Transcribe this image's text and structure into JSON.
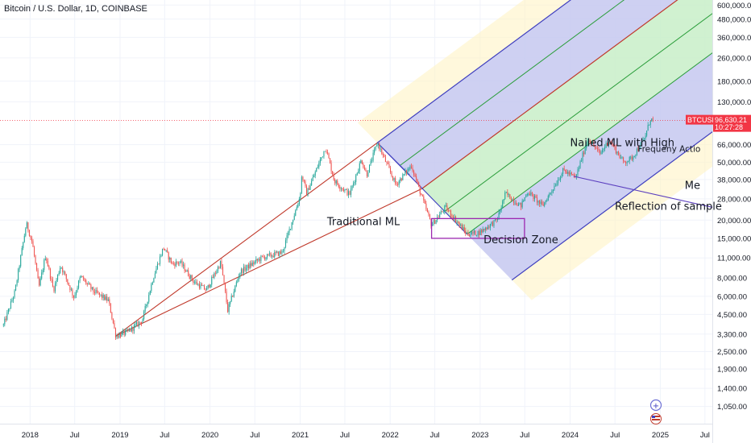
{
  "header": {
    "title": "Bitcoin / U.S. Dollar, 1D, COINBASE"
  },
  "chart_data": {
    "type": "candlestick",
    "symbol": "BTCUSD",
    "timeframe": "1D",
    "exchange": "COINBASE",
    "y_scale": "log",
    "ylim": [
      800,
      650000
    ],
    "xlim": [
      "2017-09-01",
      "2025-07-31"
    ],
    "y_ticks": [
      "600,000.00",
      "480,000.00",
      "360,000.00",
      "260,000.00",
      "180,000.00",
      "130,000.00",
      "66,000.00",
      "50,000.00",
      "38,000.00",
      "28,000.00",
      "20,000.00",
      "15,000.00",
      "11,000.00",
      "8,000.00",
      "6,000.00",
      "4,500.00",
      "3,300.00",
      "2,500.00",
      "1,900.00",
      "1,400.00",
      "1,050.00"
    ],
    "x_ticks": [
      {
        "label": "2018",
        "date": "2018-01-01"
      },
      {
        "label": "Jul",
        "date": "2018-07-01"
      },
      {
        "label": "2019",
        "date": "2019-01-01"
      },
      {
        "label": "Jul",
        "date": "2019-07-01"
      },
      {
        "label": "2020",
        "date": "2020-01-01"
      },
      {
        "label": "Jul",
        "date": "2020-07-01"
      },
      {
        "label": "2021",
        "date": "2021-01-01"
      },
      {
        "label": "Jul",
        "date": "2021-07-01"
      },
      {
        "label": "2022",
        "date": "2022-01-01"
      },
      {
        "label": "Jul",
        "date": "2022-07-01"
      },
      {
        "label": "2023",
        "date": "2023-01-01"
      },
      {
        "label": "Jul",
        "date": "2023-07-01"
      },
      {
        "label": "2024",
        "date": "2024-01-01"
      },
      {
        "label": "Jul",
        "date": "2024-07-01"
      },
      {
        "label": "2025",
        "date": "2025-01-01"
      },
      {
        "label": "Jul",
        "date": "2025-07-01"
      }
    ],
    "price_path": [
      [
        "2017-09-15",
        3800
      ],
      [
        "2017-11-01",
        6500
      ],
      [
        "2017-12-17",
        19000
      ],
      [
        "2018-01-10",
        14000
      ],
      [
        "2018-02-06",
        6900
      ],
      [
        "2018-03-05",
        11500
      ],
      [
        "2018-04-06",
        6600
      ],
      [
        "2018-05-05",
        9800
      ],
      [
        "2018-06-28",
        5900
      ],
      [
        "2018-07-25",
        8200
      ],
      [
        "2018-09-15",
        6500
      ],
      [
        "2018-11-15",
        5600
      ],
      [
        "2018-12-15",
        3200
      ],
      [
        "2019-02-01",
        3400
      ],
      [
        "2019-04-01",
        4100
      ],
      [
        "2019-05-15",
        8000
      ],
      [
        "2019-06-26",
        13000
      ],
      [
        "2019-08-01",
        10000
      ],
      [
        "2019-09-01",
        10300
      ],
      [
        "2019-10-26",
        7600
      ],
      [
        "2019-12-17",
        6600
      ],
      [
        "2020-02-14",
        10300
      ],
      [
        "2020-03-13",
        4800
      ],
      [
        "2020-05-01",
        8800
      ],
      [
        "2020-07-27",
        11000
      ],
      [
        "2020-10-20",
        12000
      ],
      [
        "2020-12-31",
        29000
      ],
      [
        "2021-01-08",
        41000
      ],
      [
        "2021-01-27",
        30500
      ],
      [
        "2021-04-14",
        63500
      ],
      [
        "2021-05-20",
        37000
      ],
      [
        "2021-07-20",
        30000
      ],
      [
        "2021-09-06",
        52000
      ],
      [
        "2021-09-28",
        41000
      ],
      [
        "2021-11-10",
        68000
      ],
      [
        "2022-01-24",
        35000
      ],
      [
        "2022-03-28",
        47500
      ],
      [
        "2022-05-12",
        28000
      ],
      [
        "2022-06-18",
        18500
      ],
      [
        "2022-08-13",
        24500
      ],
      [
        "2022-11-09",
        16000
      ],
      [
        "2022-12-30",
        16500
      ],
      [
        "2023-03-10",
        20000
      ],
      [
        "2023-04-14",
        30500
      ],
      [
        "2023-06-15",
        25000
      ],
      [
        "2023-07-13",
        31500
      ],
      [
        "2023-09-11",
        25000
      ],
      [
        "2023-12-05",
        44000
      ],
      [
        "2024-01-23",
        39000
      ],
      [
        "2024-03-14",
        73000
      ],
      [
        "2024-05-01",
        57000
      ],
      [
        "2024-06-07",
        71000
      ],
      [
        "2024-08-05",
        50000
      ],
      [
        "2024-09-06",
        53000
      ],
      [
        "2024-10-28",
        72000
      ],
      [
        "2024-11-22",
        99000
      ],
      [
        "2024-12-03",
        96630
      ]
    ],
    "last_price": {
      "symbol": "BTCUSD",
      "value": "96,630.21",
      "countdown": "10:27:28",
      "color": "#f23645"
    },
    "fork": {
      "handle_start": [
        "2018-12-15",
        3200
      ],
      "pivot": [
        "2021-11-10",
        68000
      ],
      "lower": [
        "2022-11-09",
        16000
      ],
      "median_color": "#c0392b",
      "upper_fill": "#c5c8f0",
      "mid_fill": "#c8efc8",
      "outer_line_color": "#3f3fbf",
      "inner_line_color": "#2a9d3a"
    },
    "decision_zone": {
      "from": "2022-06-18",
      "to": "2023-06-30",
      "low": 15000,
      "high": 20500,
      "color": "#9c27b0"
    },
    "annotations": [
      {
        "text": "Traditional ML"
      },
      {
        "text": "Decision Zone"
      },
      {
        "text": "Nailed ML with High"
      },
      {
        "text": "Frequeny Actio"
      },
      {
        "text": "Me"
      },
      {
        "text": "Reflection of sample"
      }
    ],
    "grid": true,
    "colors": {
      "up": "#26a69a",
      "down": "#ef5350"
    }
  }
}
